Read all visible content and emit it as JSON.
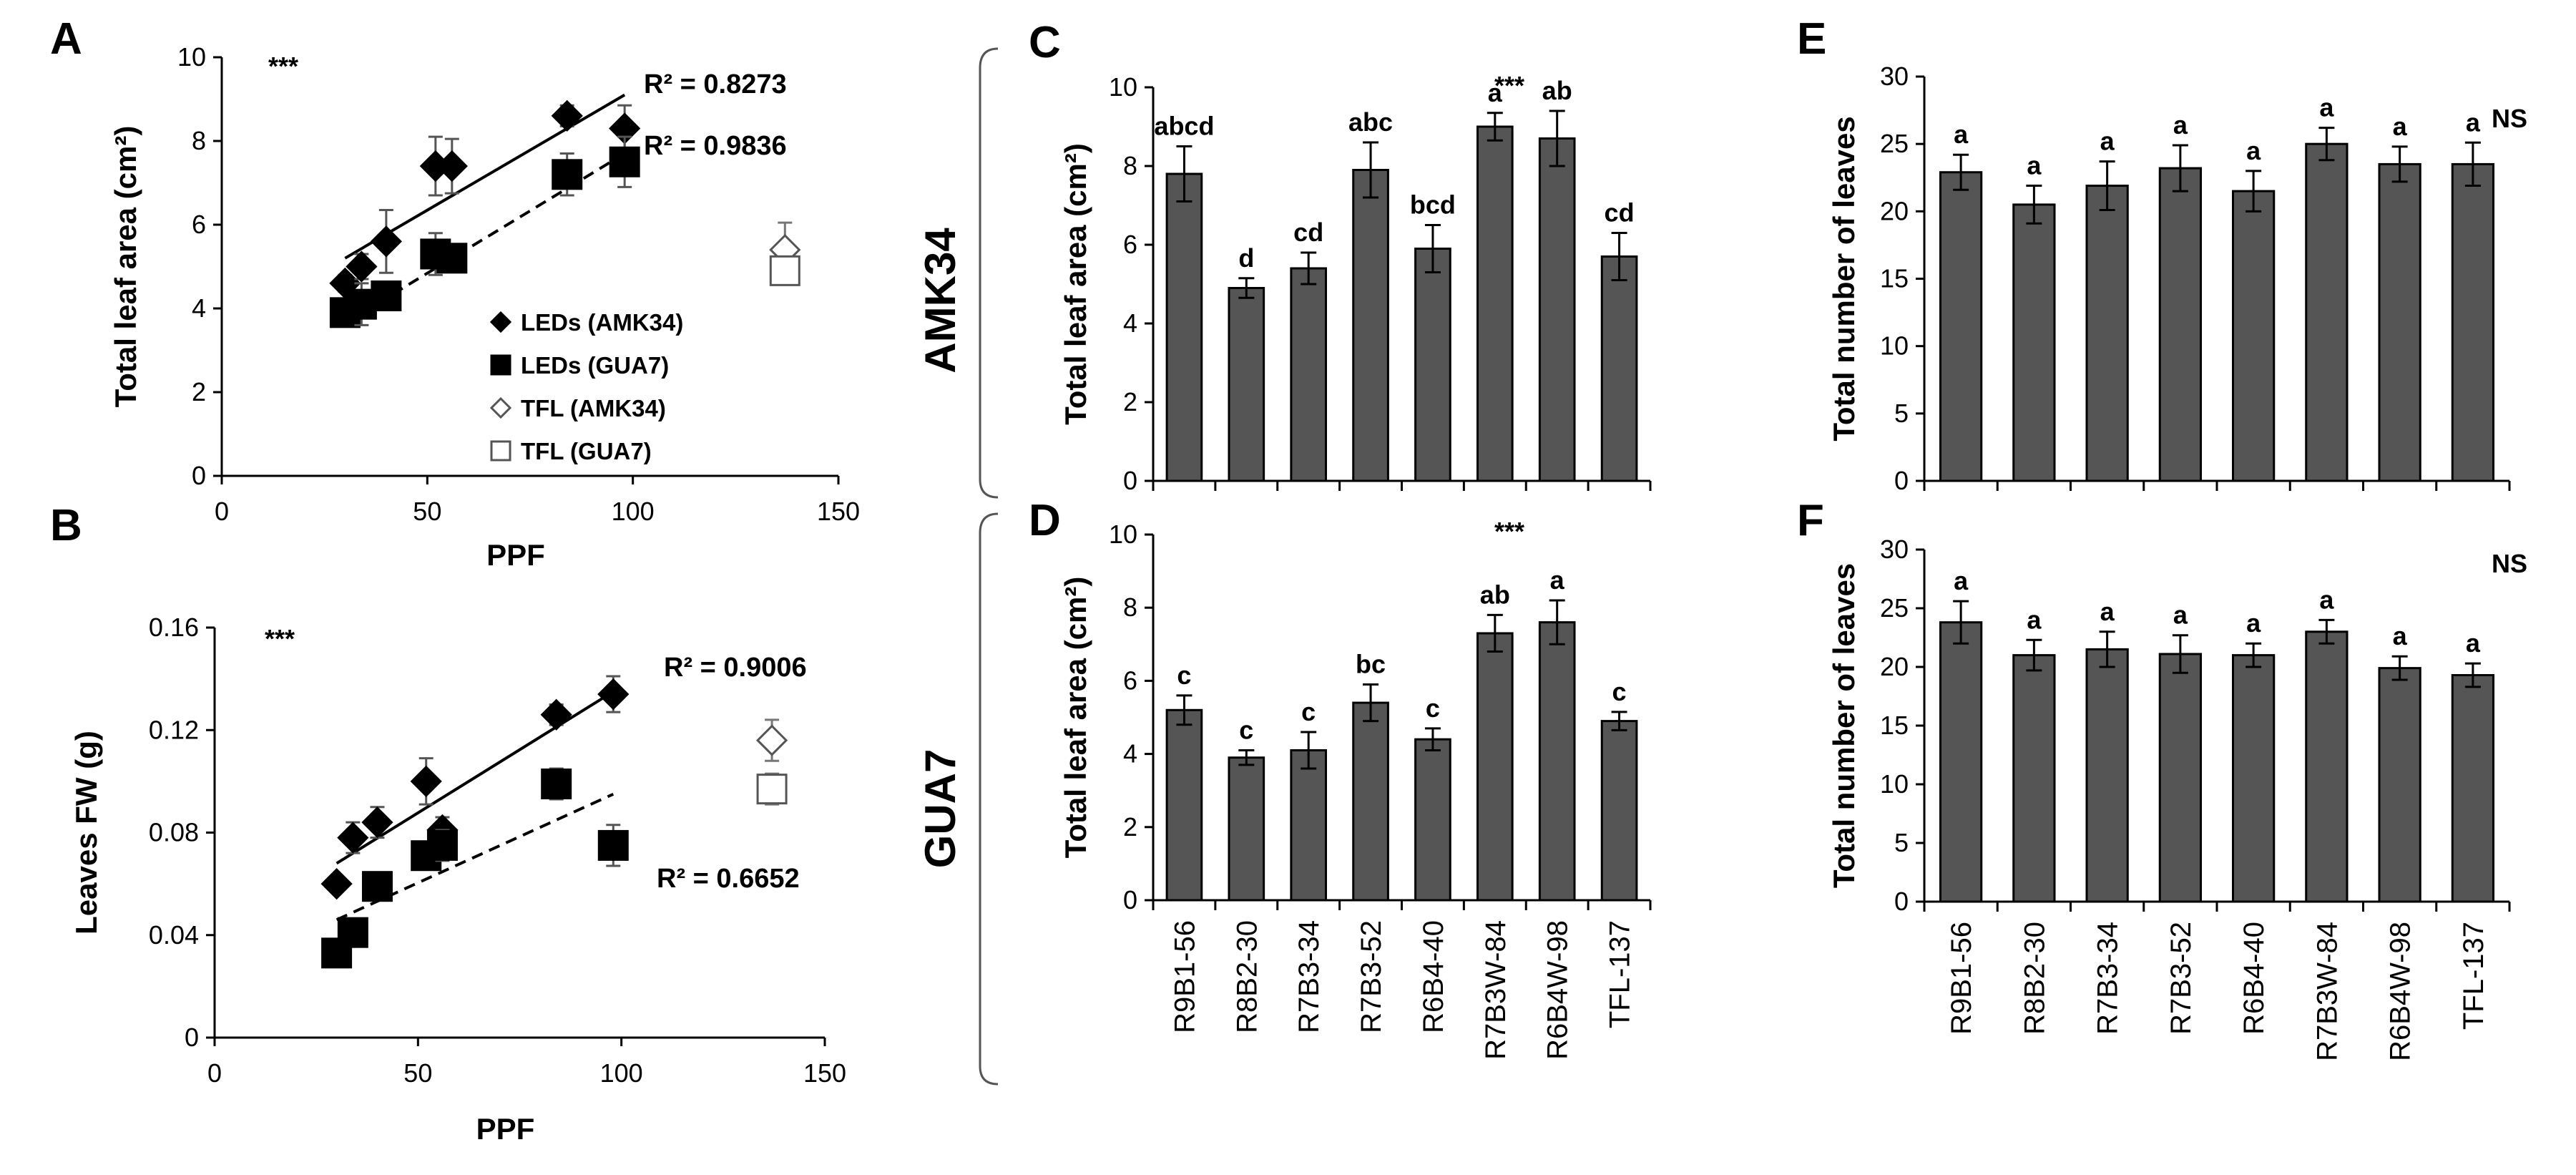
{
  "colors": {
    "bar_fill": "#555555",
    "marker_fill": "#000000",
    "open_marker_fill": "#ffffff",
    "axis": "#000000"
  },
  "row_labels": [
    "AMK34",
    "GUA7"
  ],
  "chart_data": [
    {
      "id": "A",
      "type": "scatter",
      "panel_label": "A",
      "title": "",
      "xlabel": "PPF",
      "ylabel": "Total leaf area (cm²)",
      "xlim": [
        0,
        150
      ],
      "ylim": [
        0,
        10
      ],
      "xticks": [
        0,
        50,
        100,
        150
      ],
      "yticks": [
        0,
        2,
        4,
        6,
        8,
        10
      ],
      "significance": "***",
      "series": [
        {
          "name": "LEDs (AMK34)",
          "marker": "diamond-filled",
          "x": [
            30,
            34,
            40,
            52,
            56,
            84,
            98
          ],
          "y": [
            4.6,
            5.0,
            5.6,
            7.4,
            7.4,
            8.6,
            8.3
          ],
          "err": [
            0.2,
            0.3,
            0.75,
            0.7,
            0.65,
            0.25,
            0.55
          ]
        },
        {
          "name": "LEDs (GUA7)",
          "marker": "square-filled",
          "x": [
            30,
            34,
            40,
            52,
            56,
            84,
            98
          ],
          "y": [
            3.9,
            4.1,
            4.3,
            5.3,
            5.2,
            7.2,
            7.5
          ],
          "err": [
            0.3,
            0.5,
            0.3,
            0.5,
            0.3,
            0.5,
            0.6
          ]
        },
        {
          "name": "TFL (AMK34)",
          "marker": "diamond-open",
          "x": [
            137
          ],
          "y": [
            5.4
          ],
          "err": [
            0.65
          ]
        },
        {
          "name": "TFL (GUA7)",
          "marker": "square-open",
          "x": [
            137
          ],
          "y": [
            4.9
          ],
          "err": [
            0.25
          ]
        }
      ],
      "trendlines": [
        {
          "series": "LEDs (AMK34)",
          "style": "solid",
          "x": [
            30,
            98
          ],
          "y": [
            5.2,
            9.1
          ],
          "r2": "R² = 0.8273"
        },
        {
          "series": "LEDs (GUA7)",
          "style": "dashed",
          "x": [
            30,
            98
          ],
          "y": [
            3.65,
            7.7
          ],
          "r2": "R² = 0.9836"
        }
      ],
      "legend": [
        "LEDs (AMK34)",
        "LEDs (GUA7)",
        "TFL (AMK34)",
        "TFL (GUA7)"
      ]
    },
    {
      "id": "B",
      "type": "scatter",
      "panel_label": "B",
      "title": "",
      "xlabel": "PPF",
      "ylabel": "Leaves FW (g)",
      "xlim": [
        0,
        150
      ],
      "ylim": [
        0,
        0.16
      ],
      "xticks": [
        0,
        50,
        100,
        150
      ],
      "yticks": [
        0,
        0.04,
        0.08,
        0.12,
        0.16
      ],
      "ytick_labels": [
        "0",
        "0.04",
        "0.08",
        "0.12",
        "0.16"
      ],
      "significance": "***",
      "series": [
        {
          "name": "LEDs (AMK34)",
          "marker": "diamond-filled",
          "x": [
            30,
            34,
            40,
            52,
            56,
            84,
            98
          ],
          "y": [
            0.06,
            0.078,
            0.084,
            0.1,
            0.081,
            0.126,
            0.134
          ],
          "err": [
            0.002,
            0.006,
            0.006,
            0.009,
            0.005,
            0.004,
            0.007
          ]
        },
        {
          "name": "LEDs (GUA7)",
          "marker": "square-filled",
          "x": [
            30,
            34,
            40,
            52,
            56,
            84,
            98
          ],
          "y": [
            0.033,
            0.041,
            0.059,
            0.071,
            0.075,
            0.099,
            0.075
          ],
          "err": [
            0.002,
            0.003,
            0.002,
            0.005,
            0.006,
            0.006,
            0.008
          ]
        },
        {
          "name": "TFL (AMK34)",
          "marker": "diamond-open",
          "x": [
            137
          ],
          "y": [
            0.116
          ],
          "err": [
            0.008
          ]
        },
        {
          "name": "TFL (GUA7)",
          "marker": "square-open",
          "x": [
            137
          ],
          "y": [
            0.097
          ],
          "err": [
            0.006
          ]
        }
      ],
      "trendlines": [
        {
          "series": "LEDs (AMK34)",
          "style": "solid",
          "x": [
            30,
            98
          ],
          "y": [
            0.068,
            0.135
          ],
          "r2": "R² = 0.9006"
        },
        {
          "series": "LEDs (GUA7)",
          "style": "dashed",
          "x": [
            30,
            98
          ],
          "y": [
            0.046,
            0.095
          ],
          "r2": "R² = 0.6652"
        }
      ]
    },
    {
      "id": "C",
      "type": "bar",
      "panel_label": "C",
      "xlabel": "",
      "ylabel": "Total leaf area (cm²)",
      "ylim": [
        0,
        10
      ],
      "yticks": [
        0,
        2,
        4,
        6,
        8,
        10
      ],
      "significance": "***",
      "categories": [
        "R9B1-56",
        "R8B2-30",
        "R7B3-34",
        "R7B3-52",
        "R6B4-40",
        "R7B3W-84",
        "R6B4W-98",
        "TFL-137"
      ],
      "show_categories": false,
      "values": [
        7.8,
        4.9,
        5.4,
        7.9,
        5.9,
        9.0,
        8.7,
        5.7
      ],
      "errors": [
        0.7,
        0.25,
        0.4,
        0.7,
        0.6,
        0.35,
        0.7,
        0.6
      ],
      "letters": [
        "abcd",
        "d",
        "cd",
        "abc",
        "bcd",
        "a",
        "ab",
        "cd"
      ]
    },
    {
      "id": "D",
      "type": "bar",
      "panel_label": "D",
      "xlabel": "",
      "ylabel": "Total leaf area (cm²)",
      "ylim": [
        0,
        10
      ],
      "yticks": [
        0,
        2,
        4,
        6,
        8,
        10
      ],
      "significance": "***",
      "categories": [
        "R9B1-56",
        "R8B2-30",
        "R7B3-34",
        "R7B3-52",
        "R6B4-40",
        "R7B3W-84",
        "R6B4W-98",
        "TFL-137"
      ],
      "show_categories": true,
      "values": [
        5.2,
        3.9,
        4.1,
        5.4,
        4.4,
        7.3,
        7.6,
        4.9
      ],
      "errors": [
        0.4,
        0.2,
        0.5,
        0.5,
        0.3,
        0.5,
        0.6,
        0.25
      ],
      "letters": [
        "c",
        "c",
        "c",
        "bc",
        "c",
        "ab",
        "a",
        "c"
      ]
    },
    {
      "id": "E",
      "type": "bar",
      "panel_label": "E",
      "xlabel": "",
      "ylabel": "Total number of leaves",
      "ylim": [
        0,
        30
      ],
      "yticks": [
        0,
        5,
        10,
        15,
        20,
        25,
        30
      ],
      "significance": "NS",
      "categories": [
        "R9B1-56",
        "R8B2-30",
        "R7B3-34",
        "R7B3-52",
        "R6B4-40",
        "R7B3W-84",
        "R6B4W-98",
        "TFL-137"
      ],
      "show_categories": false,
      "values": [
        22.9,
        20.5,
        21.9,
        23.2,
        21.5,
        25.0,
        23.5,
        23.5
      ],
      "errors": [
        1.3,
        1.4,
        1.8,
        1.7,
        1.5,
        1.2,
        1.3,
        1.6
      ],
      "letters": [
        "a",
        "a",
        "a",
        "a",
        "a",
        "a",
        "a",
        "a"
      ]
    },
    {
      "id": "F",
      "type": "bar",
      "panel_label": "F",
      "xlabel": "",
      "ylabel": "Total number of leaves",
      "ylim": [
        0,
        30
      ],
      "yticks": [
        0,
        5,
        10,
        15,
        20,
        25,
        30
      ],
      "significance": "NS",
      "categories": [
        "R9B1-56",
        "R8B2-30",
        "R7B3-34",
        "R7B3-52",
        "R6B4-40",
        "R7B3W-84",
        "R6B4W-98",
        "TFL-137"
      ],
      "show_categories": true,
      "values": [
        23.8,
        21.0,
        21.5,
        21.1,
        21.0,
        23.0,
        19.9,
        19.3
      ],
      "errors": [
        1.8,
        1.3,
        1.5,
        1.6,
        1.0,
        1.0,
        1.0,
        1.0
      ],
      "letters": [
        "a",
        "a",
        "a",
        "a",
        "a",
        "a",
        "a",
        "a"
      ]
    }
  ]
}
